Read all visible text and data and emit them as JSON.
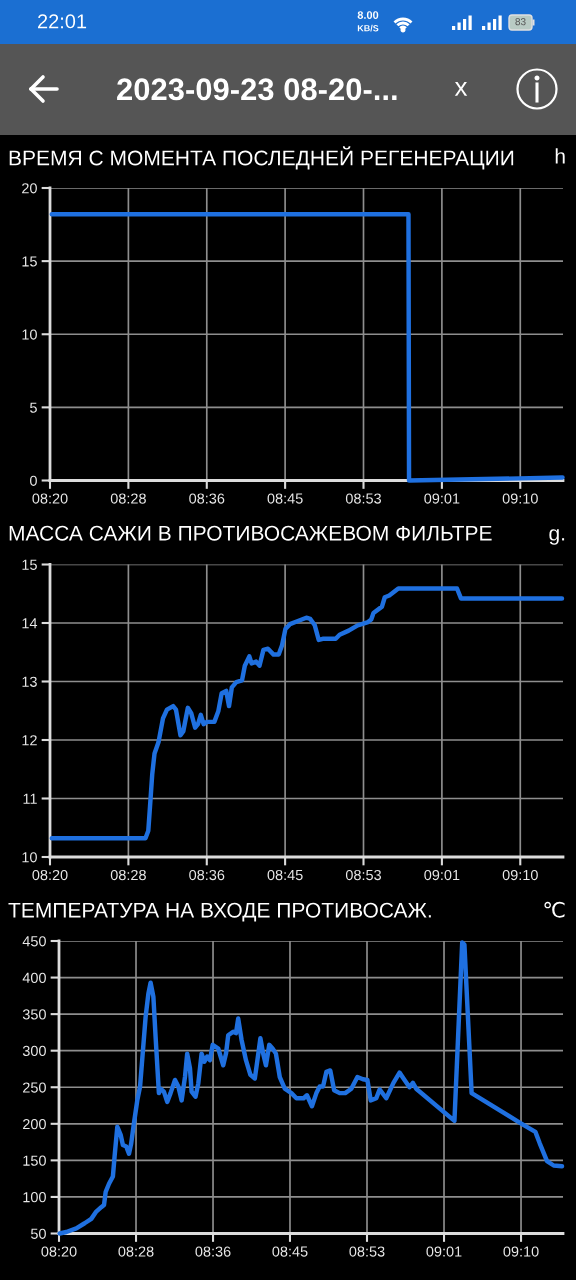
{
  "chart_data": [
    {
      "type": "other",
      "title": "2023-09-23 08-20-...",
      "annotations": [
        "22:01",
        "8.00",
        "KB/S",
        "83",
        "x"
      ]
    },
    {
      "type": "line",
      "title": "ВРЕМЯ С МОМЕНТА ПОСЛЕДНЕЙ РЕГЕНЕРАЦИИ",
      "ylabel": "h",
      "grid": true,
      "xlim": [
        8.3278,
        9.2368
      ],
      "xticks": [
        {
          "value": 8.3278,
          "label": "08:20"
        },
        {
          "value": 8.4667,
          "label": "08:28"
        },
        {
          "value": 8.6056,
          "label": "08:36"
        },
        {
          "value": 8.7444,
          "label": "08:45"
        },
        {
          "value": 8.8833,
          "label": "08:53"
        },
        {
          "value": 9.0222,
          "label": "09:01"
        },
        {
          "value": 9.1611,
          "label": "09:10"
        }
      ],
      "ylim": [
        0,
        20
      ],
      "yticks": [
        0,
        5,
        10,
        15,
        20
      ],
      "series": [
        {
          "color": "#1f70e0",
          "x": [
            8.331,
            8.963,
            8.964,
            9.236
          ],
          "values": [
            18.2,
            18.2,
            0,
            0.2
          ]
        }
      ]
    },
    {
      "type": "line",
      "title": "МАССА САЖИ В ПРОТИВОСАЖЕВОМ ФИЛЬТРЕ",
      "ylabel": "g.",
      "grid": true,
      "xlim": [
        8.3278,
        9.2368
      ],
      "xticks": [
        {
          "value": 8.3278,
          "label": "08:20"
        },
        {
          "value": 8.4667,
          "label": "08:28"
        },
        {
          "value": 8.6056,
          "label": "08:36"
        },
        {
          "value": 8.7444,
          "label": "08:45"
        },
        {
          "value": 8.8833,
          "label": "08:53"
        },
        {
          "value": 9.0222,
          "label": "09:01"
        },
        {
          "value": 9.1611,
          "label": "09:10"
        }
      ],
      "ylim": [
        10,
        15
      ],
      "yticks": [
        10,
        11,
        12,
        13,
        14,
        15
      ],
      "series": [
        {
          "color": "#1f70e0",
          "x": [
            8.331,
            8.497,
            8.502,
            8.505,
            8.509,
            8.513,
            8.52,
            8.528,
            8.535,
            8.546,
            8.551,
            8.559,
            8.564,
            8.572,
            8.578,
            8.585,
            8.59,
            8.595,
            8.6,
            8.606,
            8.619,
            8.626,
            8.632,
            8.64,
            8.645,
            8.65,
            8.658,
            8.668,
            8.673,
            8.681,
            8.685,
            8.693,
            8.699,
            8.706,
            8.714,
            8.724,
            8.733,
            8.739,
            8.745,
            8.753,
            8.766,
            8.782,
            8.789,
            8.797,
            8.804,
            8.811,
            8.834,
            8.841,
            8.857,
            8.873,
            8.89,
            8.897,
            8.901,
            8.916,
            8.921,
            8.929,
            8.945,
            9.049,
            9.056,
            9.235
          ],
          "values": [
            10.32,
            10.32,
            10.45,
            10.86,
            11.42,
            11.77,
            11.96,
            12.37,
            12.52,
            12.58,
            12.52,
            12.08,
            12.15,
            12.55,
            12.46,
            12.21,
            12.27,
            12.43,
            12.27,
            12.31,
            12.31,
            12.49,
            12.8,
            12.84,
            12.58,
            12.9,
            12.99,
            13.02,
            13.27,
            13.43,
            13.31,
            13.34,
            13.27,
            13.54,
            13.56,
            13.46,
            13.46,
            13.62,
            13.9,
            13.98,
            14.03,
            14.09,
            14.07,
            13.96,
            13.71,
            13.73,
            13.73,
            13.8,
            13.87,
            13.96,
            14.01,
            14.06,
            14.17,
            14.28,
            14.44,
            14.47,
            14.59,
            14.59,
            14.42,
            14.42
          ]
        }
      ]
    },
    {
      "type": "line",
      "title": "ТЕМПЕРАТУРА НА ВХОДЕ ПРОТИВОСАЖ.",
      "ylabel": "℃",
      "grid": true,
      "xlim": [
        8.3278,
        9.2368
      ],
      "xticks": [
        {
          "value": 8.3278,
          "label": "08:20"
        },
        {
          "value": 8.4667,
          "label": "08:28"
        },
        {
          "value": 8.6056,
          "label": "08:36"
        },
        {
          "value": 8.7444,
          "label": "08:45"
        },
        {
          "value": 8.8833,
          "label": "08:53"
        },
        {
          "value": 9.0222,
          "label": "09:01"
        },
        {
          "value": 9.1611,
          "label": "09:10"
        }
      ],
      "ylim": [
        50,
        450
      ],
      "yticks": [
        50,
        100,
        150,
        200,
        250,
        300,
        350,
        400,
        450
      ],
      "series": [
        {
          "color": "#1f70e0",
          "x": [
            8.329,
            8.341,
            8.359,
            8.374,
            8.386,
            8.395,
            8.404,
            8.409,
            8.412,
            8.418,
            8.425,
            8.428,
            8.433,
            8.439,
            8.443,
            8.449,
            8.454,
            8.458,
            8.463,
            8.469,
            8.474,
            8.478,
            8.484,
            8.489,
            8.493,
            8.498,
            8.502,
            8.508,
            8.511,
            8.517,
            8.523,
            8.529,
            8.537,
            8.543,
            8.549,
            8.555,
            8.559,
            8.564,
            8.567,
            8.574,
            8.579,
            8.585,
            8.59,
            8.595,
            8.6,
            8.605,
            8.615,
            8.624,
            8.629,
            8.633,
            8.642,
            8.647,
            8.651,
            8.657,
            8.665,
            8.673,
            8.681,
            8.686,
            8.691,
            8.696,
            8.701,
            8.707,
            8.713,
            8.719,
            8.726,
            8.735,
            8.747,
            8.756,
            8.769,
            8.775,
            8.784,
            8.792,
            8.798,
            8.804,
            8.81,
            8.817,
            8.824,
            8.834,
            8.844,
            8.855,
            8.866,
            8.876,
            8.884,
            8.89,
            8.9,
            8.906,
            8.918,
            8.931,
            8.942,
            8.951,
            8.96,
            8.966,
            8.972,
            9.041,
            9.055,
            9.059,
            9.072,
            9.16,
            9.187,
            9.195,
            9.208,
            9.22,
            9.235
          ],
          "values": [
            50,
            52,
            57,
            64,
            70,
            80,
            86,
            89,
            107,
            118,
            128,
            155,
            196,
            185,
            171,
            169,
            159,
            173,
            201,
            232,
            251,
            289,
            346,
            378,
            393,
            374,
            319,
            242,
            248,
            244,
            230,
            242,
            260,
            251,
            232,
            264,
            296,
            276,
            244,
            237,
            255,
            296,
            285,
            292,
            287,
            308,
            303,
            280,
            296,
            321,
            326,
            324,
            344,
            315,
            287,
            267,
            262,
            289,
            317,
            296,
            280,
            308,
            303,
            296,
            264,
            248,
            242,
            235,
            235,
            239,
            224,
            242,
            251,
            251,
            271,
            273,
            246,
            242,
            242,
            248,
            264,
            261,
            260,
            232,
            235,
            247,
            235,
            256,
            270,
            260,
            250,
            256,
            248,
            204,
            448,
            445,
            242,
            201,
            189,
            173,
            149,
            143,
            142
          ]
        }
      ]
    }
  ]
}
